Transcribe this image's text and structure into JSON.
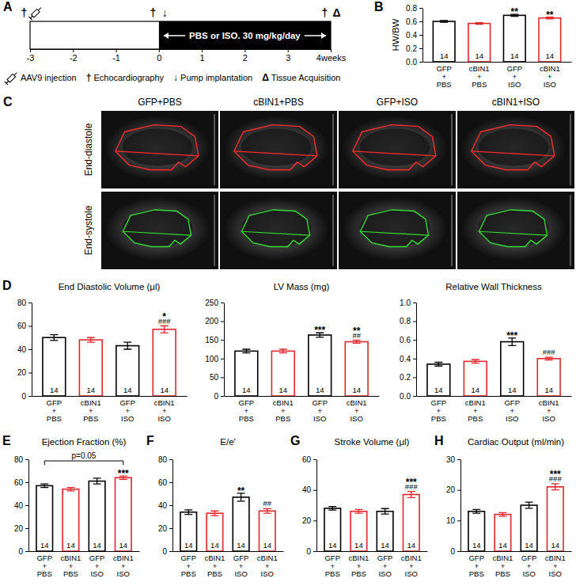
{
  "panel_a": {
    "panel": "A",
    "xlim": [
      -3,
      4
    ],
    "xticks": [
      -3,
      -2,
      -1,
      0,
      1,
      2,
      3,
      {
        "value": 4,
        "label": "4weeks"
      }
    ],
    "treatment": {
      "from": 0,
      "to": 4,
      "label": "PBS or ISO. 30 mg/kg/day"
    },
    "events": [
      {
        "x": -3,
        "symbol": "†"
      },
      {
        "x": -3,
        "symbol": null
      },
      {
        "x": 0,
        "symbol": "†"
      },
      {
        "x": 0,
        "symbol": "↓"
      },
      {
        "x": 4,
        "symbol": "†"
      },
      {
        "x": 4,
        "symbol": "Δ"
      }
    ],
    "legend": [
      {
        "symbol": null,
        "label": "AAV9 injection"
      },
      {
        "symbol": "†",
        "label": "Echocardiography"
      },
      {
        "symbol": "↓",
        "label": "Pump implantation"
      },
      {
        "symbol": "Δ",
        "label": "Tissue Acquisition"
      }
    ]
  },
  "panel_c": {
    "panel": "C",
    "columns": [
      "GFP+PBS",
      "cBIN1+PBS",
      "GFP+ISO",
      "cBIN1+ISO"
    ],
    "rows": [
      "End-diastole",
      "End-systole"
    ]
  },
  "chart_data": [
    {
      "type": "bar",
      "panel": "B",
      "y_label": "HW/BW",
      "categories": [
        "GFP + PBS",
        "cBIN1 + PBS",
        "GFP + ISO",
        "cBIN1 + ISO"
      ],
      "values": [
        0.6,
        0.57,
        0.69,
        0.65
      ],
      "errors": [
        0.012,
        0.012,
        0.015,
        0.014
      ],
      "n": [
        14,
        14,
        14,
        14
      ],
      "colors": [
        "#000000",
        "#e3262e",
        "#000000",
        "#e3262e"
      ],
      "stars": [
        null,
        null,
        "**",
        "**"
      ],
      "ylim": [
        0,
        0.8
      ],
      "yticks": [
        {
          "value": 0,
          "label": "0.0"
        },
        0.2,
        0.4,
        0.6,
        0.8
      ]
    },
    {
      "type": "bar",
      "panel": "D",
      "title": "End Diastolic Volume (μl)",
      "categories": [
        "GFP + PBS",
        "cBIN1 + PBS",
        "GFP + ISO",
        "cBIN1 + ISO"
      ],
      "values": [
        50,
        48,
        43,
        57
      ],
      "errors": [
        2.5,
        2,
        3,
        3
      ],
      "n": [
        14,
        14,
        14,
        14
      ],
      "colors": [
        "#000000",
        "#e3262e",
        "#000000",
        "#e3262e"
      ],
      "stars": [
        null,
        null,
        null,
        "*"
      ],
      "hashes": [
        null,
        null,
        null,
        "###"
      ],
      "ylim": [
        0,
        80
      ],
      "yticks": [
        0,
        20,
        40,
        60,
        80
      ]
    },
    {
      "type": "bar",
      "title": "LV Mass (mg)",
      "categories": [
        "GFP + PBS",
        "cBIN1 + PBS",
        "GFP + ISO",
        "cBIN1 + ISO"
      ],
      "values": [
        120,
        120,
        163,
        145
      ],
      "errors": [
        5,
        5,
        6,
        4
      ],
      "n": [
        14,
        14,
        14,
        14
      ],
      "colors": [
        "#000000",
        "#e3262e",
        "#000000",
        "#e3262e"
      ],
      "stars": [
        null,
        null,
        "***",
        "**"
      ],
      "hashes": [
        null,
        null,
        null,
        "##"
      ],
      "ylim": [
        0,
        250
      ],
      "yticks": [
        0,
        50,
        100,
        150,
        200,
        250
      ]
    },
    {
      "type": "bar",
      "title": "Relative Wall Thickness",
      "categories": [
        "GFP + PBS",
        "cBIN1 + PBS",
        "GFP + ISO",
        "cBIN1 + ISO"
      ],
      "values": [
        0.34,
        0.37,
        0.58,
        0.4
      ],
      "errors": [
        0.02,
        0.02,
        0.04,
        0.015
      ],
      "n": [
        14,
        14,
        14,
        14
      ],
      "colors": [
        "#000000",
        "#e3262e",
        "#000000",
        "#e3262e"
      ],
      "stars": [
        null,
        null,
        "***",
        null
      ],
      "hashes": [
        null,
        null,
        null,
        "###"
      ],
      "ylim": [
        0,
        1.0
      ],
      "yticks": [
        {
          "value": 0,
          "label": "0.0"
        },
        0.2,
        0.4,
        0.6,
        0.8,
        {
          "value": 1.0,
          "label": "1.0"
        }
      ]
    },
    {
      "type": "bar",
      "panel": "E",
      "title": "Ejection Fraction (%)",
      "categories": [
        "GFP + PBS",
        "cBIN1 + PBS",
        "GFP + ISO",
        "cBIN1 + ISO"
      ],
      "values": [
        57,
        54,
        61,
        64
      ],
      "errors": [
        1.5,
        1.5,
        2.5,
        1.5
      ],
      "n": [
        14,
        14,
        14,
        14
      ],
      "colors": [
        "#000000",
        "#e3262e",
        "#000000",
        "#e3262e"
      ],
      "stars": [
        null,
        null,
        null,
        "***"
      ],
      "bracket": {
        "label": "p=0.05",
        "between": [
          "GFP + PBS",
          "cBIN1 + ISO"
        ]
      },
      "ylim": [
        0,
        80
      ],
      "yticks": [
        0,
        20,
        40,
        60,
        80
      ]
    },
    {
      "type": "bar",
      "panel": "F",
      "title": "E/e'",
      "categories": [
        "GFP + PBS",
        "cBIN1 + PBS",
        "GFP + ISO",
        "cBIN1 + ISO"
      ],
      "values": [
        34,
        33,
        47,
        35
      ],
      "errors": [
        2,
        2,
        3.5,
        2
      ],
      "n": [
        14,
        14,
        14,
        14
      ],
      "colors": [
        "#000000",
        "#e3262e",
        "#000000",
        "#e3262e"
      ],
      "stars": [
        null,
        null,
        "**",
        null
      ],
      "hashes": [
        null,
        null,
        null,
        "##"
      ],
      "ylim": [
        0,
        80
      ],
      "yticks": [
        0,
        20,
        40,
        60,
        80
      ]
    },
    {
      "type": "bar",
      "panel": "G",
      "title": "Stroke Volume (μl)",
      "categories": [
        "GFP + PBS",
        "cBIN1 + PBS",
        "GFP + ISO",
        "cBIN1 + ISO"
      ],
      "values": [
        28,
        26,
        26,
        37
      ],
      "errors": [
        1.2,
        1.2,
        1.8,
        2
      ],
      "n": [
        14,
        14,
        14,
        14
      ],
      "colors": [
        "#000000",
        "#e3262e",
        "#000000",
        "#e3262e"
      ],
      "stars": [
        null,
        null,
        null,
        "***"
      ],
      "hashes": [
        null,
        null,
        null,
        "###"
      ],
      "ylim": [
        0,
        60
      ],
      "yticks": [
        0,
        20,
        40,
        60
      ]
    },
    {
      "type": "bar",
      "panel": "H",
      "title": "Cardiac Output (ml/min)",
      "categories": [
        "GFP + PBS",
        "cBIN1 + PBS",
        "GFP + ISO",
        "cBIN1 + ISO"
      ],
      "values": [
        13,
        12,
        15,
        21
      ],
      "errors": [
        0.6,
        0.6,
        1,
        1
      ],
      "n": [
        14,
        14,
        14,
        14
      ],
      "colors": [
        "#000000",
        "#e3262e",
        "#000000",
        "#e3262e"
      ],
      "stars": [
        null,
        null,
        null,
        "***"
      ],
      "hashes": [
        null,
        null,
        null,
        "###"
      ],
      "ylim": [
        0,
        30
      ],
      "yticks": [
        0,
        10,
        20,
        30
      ]
    }
  ]
}
